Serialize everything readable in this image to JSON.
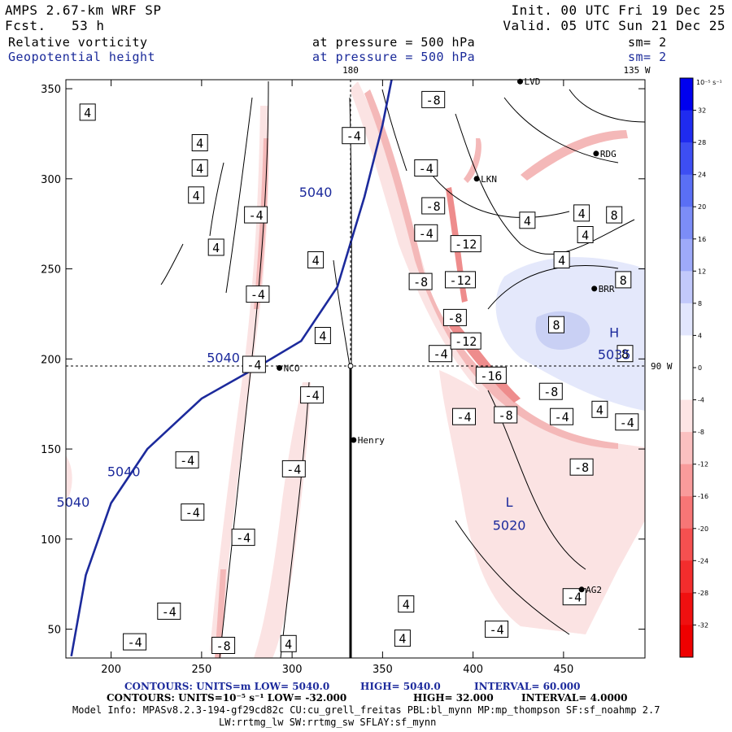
{
  "header": {
    "model": "AMPS 2.67-km WRF SP",
    "init": "Init. 00 UTC Fri 19 Dec 25",
    "fcst_label": "Fcst.",
    "fcst_value": "53 h",
    "valid": "Valid. 05 UTC Sun 21 Dec 25",
    "field1": "Relative vorticity",
    "field1_level": "at pressure =  500 hPa",
    "field1_sm": "sm= 2",
    "field2": "Geopotential height",
    "field2_level": "at pressure =  500 hPa",
    "field2_sm": "sm= 2"
  },
  "chart_data": {
    "type": "contour-map",
    "title": "AMPS 2.67-km WRF SP relative vorticity and geopotential height at 500 hPa",
    "x_ticks": [
      200,
      250,
      300,
      350,
      400,
      450
    ],
    "y_ticks": [
      50,
      100,
      150,
      200,
      250,
      300,
      350
    ],
    "xlim": [
      175,
      495
    ],
    "ylim": [
      34,
      355
    ],
    "meridian_labels": [
      "180",
      "135 W",
      "90 W"
    ],
    "stations": [
      {
        "name": "NCO",
        "x": 293,
        "y": 195
      },
      {
        "name": "Henry",
        "x": 334,
        "y": 155
      },
      {
        "name": "RDG",
        "x": 468,
        "y": 314
      },
      {
        "name": "BRR",
        "x": 467,
        "y": 239
      },
      {
        "name": "AG2",
        "x": 460,
        "y": 72
      },
      {
        "name": "LKN",
        "x": 402,
        "y": 300
      },
      {
        "name": "LVD",
        "x": 426,
        "y": 354
      }
    ],
    "height_contours": [
      {
        "label": "5040",
        "points": [
          [
            355,
            355
          ],
          [
            350,
            330
          ],
          [
            340,
            290
          ],
          [
            325,
            240
          ],
          [
            305,
            210
          ],
          [
            280,
            195
          ],
          [
            250,
            178
          ],
          [
            220,
            150
          ],
          [
            200,
            120
          ],
          [
            186,
            80
          ],
          [
            178,
            35
          ]
        ]
      }
    ],
    "height_labels": [
      {
        "text": "5040",
        "x": 313,
        "y": 290
      },
      {
        "text": "5040",
        "x": 262,
        "y": 198
      },
      {
        "text": "5040",
        "x": 207,
        "y": 135
      },
      {
        "text": "5040",
        "x": 179,
        "y": 118
      },
      {
        "text": "H",
        "x": 478,
        "y": 212
      },
      {
        "text": "5035",
        "x": 478,
        "y": 200
      },
      {
        "text": "L",
        "x": 420,
        "y": 118
      },
      {
        "text": "5020",
        "x": 420,
        "y": 105
      }
    ],
    "vorticity_labels": [
      {
        "v": "4",
        "x": 187,
        "y": 337
      },
      {
        "v": "4",
        "x": 249,
        "y": 320
      },
      {
        "v": "4",
        "x": 249,
        "y": 306
      },
      {
        "v": "4",
        "x": 247,
        "y": 291
      },
      {
        "v": "4",
        "x": 258,
        "y": 262
      },
      {
        "v": "4",
        "x": 313,
        "y": 255
      },
      {
        "v": "4",
        "x": 317,
        "y": 213
      },
      {
        "v": "4",
        "x": 363,
        "y": 64
      },
      {
        "v": "4",
        "x": 361,
        "y": 45
      },
      {
        "v": "4",
        "x": 298,
        "y": 42
      },
      {
        "v": "4",
        "x": 430,
        "y": 277
      },
      {
        "v": "4",
        "x": 460,
        "y": 281
      },
      {
        "v": "4",
        "x": 462,
        "y": 269
      },
      {
        "v": "4",
        "x": 449,
        "y": 255
      },
      {
        "v": "4",
        "x": 470,
        "y": 172
      },
      {
        "v": "-4",
        "x": 334,
        "y": 324
      },
      {
        "v": "-4",
        "x": 280,
        "y": 280
      },
      {
        "v": "-4",
        "x": 281,
        "y": 236
      },
      {
        "v": "-4",
        "x": 279,
        "y": 197
      },
      {
        "v": "-4",
        "x": 311,
        "y": 180
      },
      {
        "v": "-4",
        "x": 242,
        "y": 144
      },
      {
        "v": "-4",
        "x": 301,
        "y": 139
      },
      {
        "v": "-4",
        "x": 245,
        "y": 115
      },
      {
        "v": "-4",
        "x": 273,
        "y": 101
      },
      {
        "v": "-4",
        "x": 232,
        "y": 60
      },
      {
        "v": "-4",
        "x": 213,
        "y": 43
      },
      {
        "v": "-4",
        "x": 374,
        "y": 306
      },
      {
        "v": "-4",
        "x": 374,
        "y": 270
      },
      {
        "v": "-4",
        "x": 382,
        "y": 203
      },
      {
        "v": "-4",
        "x": 395,
        "y": 168
      },
      {
        "v": "-4",
        "x": 449,
        "y": 168
      },
      {
        "v": "-4",
        "x": 485,
        "y": 165
      },
      {
        "v": "-4",
        "x": 413,
        "y": 50
      },
      {
        "v": "-4",
        "x": 456,
        "y": 68
      },
      {
        "v": "-8",
        "x": 378,
        "y": 344
      },
      {
        "v": "-8",
        "x": 378,
        "y": 285
      },
      {
        "v": "-8",
        "x": 371,
        "y": 243
      },
      {
        "v": "-8",
        "x": 390,
        "y": 223
      },
      {
        "v": "-8",
        "x": 443,
        "y": 182
      },
      {
        "v": "-8",
        "x": 418,
        "y": 169
      },
      {
        "v": "-8",
        "x": 460,
        "y": 140
      },
      {
        "v": "-8",
        "x": 262,
        "y": 41
      },
      {
        "v": "-12",
        "x": 396,
        "y": 264
      },
      {
        "v": "-12",
        "x": 393,
        "y": 244
      },
      {
        "v": "-12",
        "x": 396,
        "y": 210
      },
      {
        "v": "-16",
        "x": 410,
        "y": 191
      },
      {
        "v": "8",
        "x": 478,
        "y": 280
      },
      {
        "v": "8",
        "x": 483,
        "y": 244
      },
      {
        "v": "8",
        "x": 446,
        "y": 219
      },
      {
        "v": "8",
        "x": 484,
        "y": 203
      }
    ],
    "colorbar": {
      "unit": "10⁻⁵ s⁻¹",
      "ticks": [
        "32",
        "28",
        "24",
        "20",
        "16",
        "12",
        "8",
        "4",
        "0",
        "-4",
        "-8",
        "-12",
        "-16",
        "-20",
        "-24",
        "-28",
        "-32"
      ]
    }
  },
  "footer": {
    "line1_a": "CONTOURS:  UNITS=m  LOW=  5040.0",
    "line1_b": "HIGH=  5040.0",
    "line1_c": "INTERVAL=   60.000",
    "line2_a": "CONTOURS:  UNITS=10⁻⁵ s⁻¹  LOW= -32.000",
    "line2_b": "HIGH=  32.000",
    "line2_c": "INTERVAL=   4.0000",
    "info1": "Model Info: MPASv8.2.3-194-gf29cd82c CU:cu_grell_freitas PBL:bl_mynn MP:mp_thompson SF:sf_noahmp 2.7",
    "info2": "LW:rrtmg_lw SW:rrtmg_sw SFLAY:sf_mynn"
  },
  "colors": {
    "neg1": "#fbe3e3",
    "neg2": "#f4b8b8",
    "neg3": "#ee8c8c",
    "neg4": "#e45a5a",
    "pos1": "#e4e8fb",
    "pos2": "#c9d0f4",
    "height": "#1c2a9c"
  }
}
